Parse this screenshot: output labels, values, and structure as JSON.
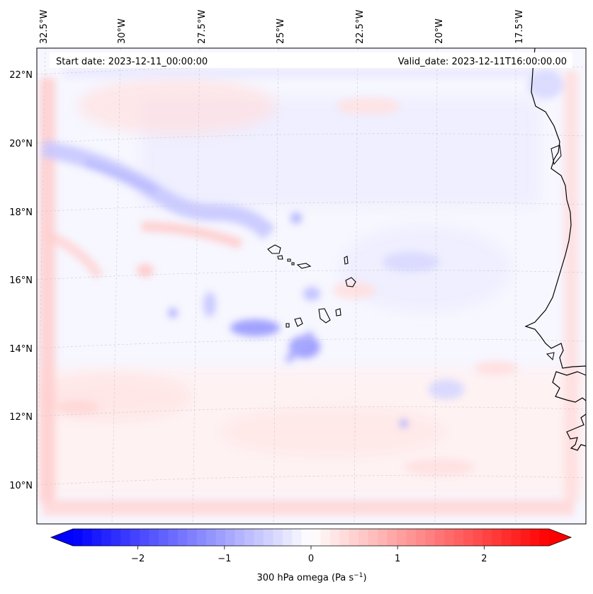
{
  "map": {
    "type": "filled-contour-map",
    "projection": "lambert-conformal",
    "field": "300 hPa omega",
    "start_date_text": "Start date: 2023-12-11_00:00:00",
    "valid_date_text": "Valid_date: 2023-12-11T16:00:00.00",
    "longitude_labels": [
      "32.5°W",
      "30°W",
      "27.5°W",
      "25°W",
      "22.5°W",
      "20°W",
      "17.5°W"
    ],
    "latitude_labels": [
      "22°N",
      "20°N",
      "18°N",
      "16°N",
      "14°N",
      "12°N",
      "10°N"
    ],
    "features": [
      "Cape Verde islands",
      "West African coastline"
    ]
  },
  "colorbar": {
    "label": "300 hPa omega (Pa s",
    "label_superscript": "−1",
    "label_close": ")",
    "ticks": [
      {
        "value": -2,
        "label": "−2"
      },
      {
        "value": -1,
        "label": "−1"
      },
      {
        "value": 0,
        "label": "0"
      },
      {
        "value": 1,
        "label": "1"
      },
      {
        "value": 2,
        "label": "2"
      }
    ],
    "range": [
      -2.75,
      2.75
    ],
    "colormap": "bwr",
    "low_color": "#0000ff",
    "mid_color": "#ffffff",
    "high_color": "#ff0000",
    "extend": "both"
  }
}
